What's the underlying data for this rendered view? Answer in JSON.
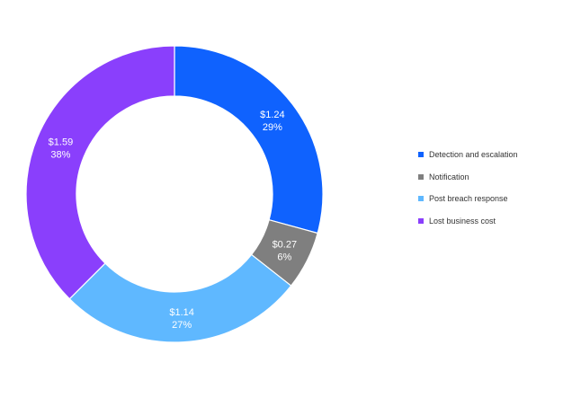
{
  "chart_data": {
    "type": "pie",
    "donut": true,
    "legend_position": "right",
    "categories": [
      "Detection and escalation",
      "Notification",
      "Post breach response",
      "Lost business cost"
    ],
    "values": [
      1.24,
      0.27,
      1.14,
      1.59
    ],
    "value_labels": [
      "$1.24",
      "$0.27",
      "$1.14",
      "$1.59"
    ],
    "percent_labels": [
      "29%",
      "6%",
      "27%",
      "38%"
    ],
    "colors": [
      "#0f62fe",
      "#7f7f7f",
      "#5fb8ff",
      "#8a3ffc"
    ]
  }
}
